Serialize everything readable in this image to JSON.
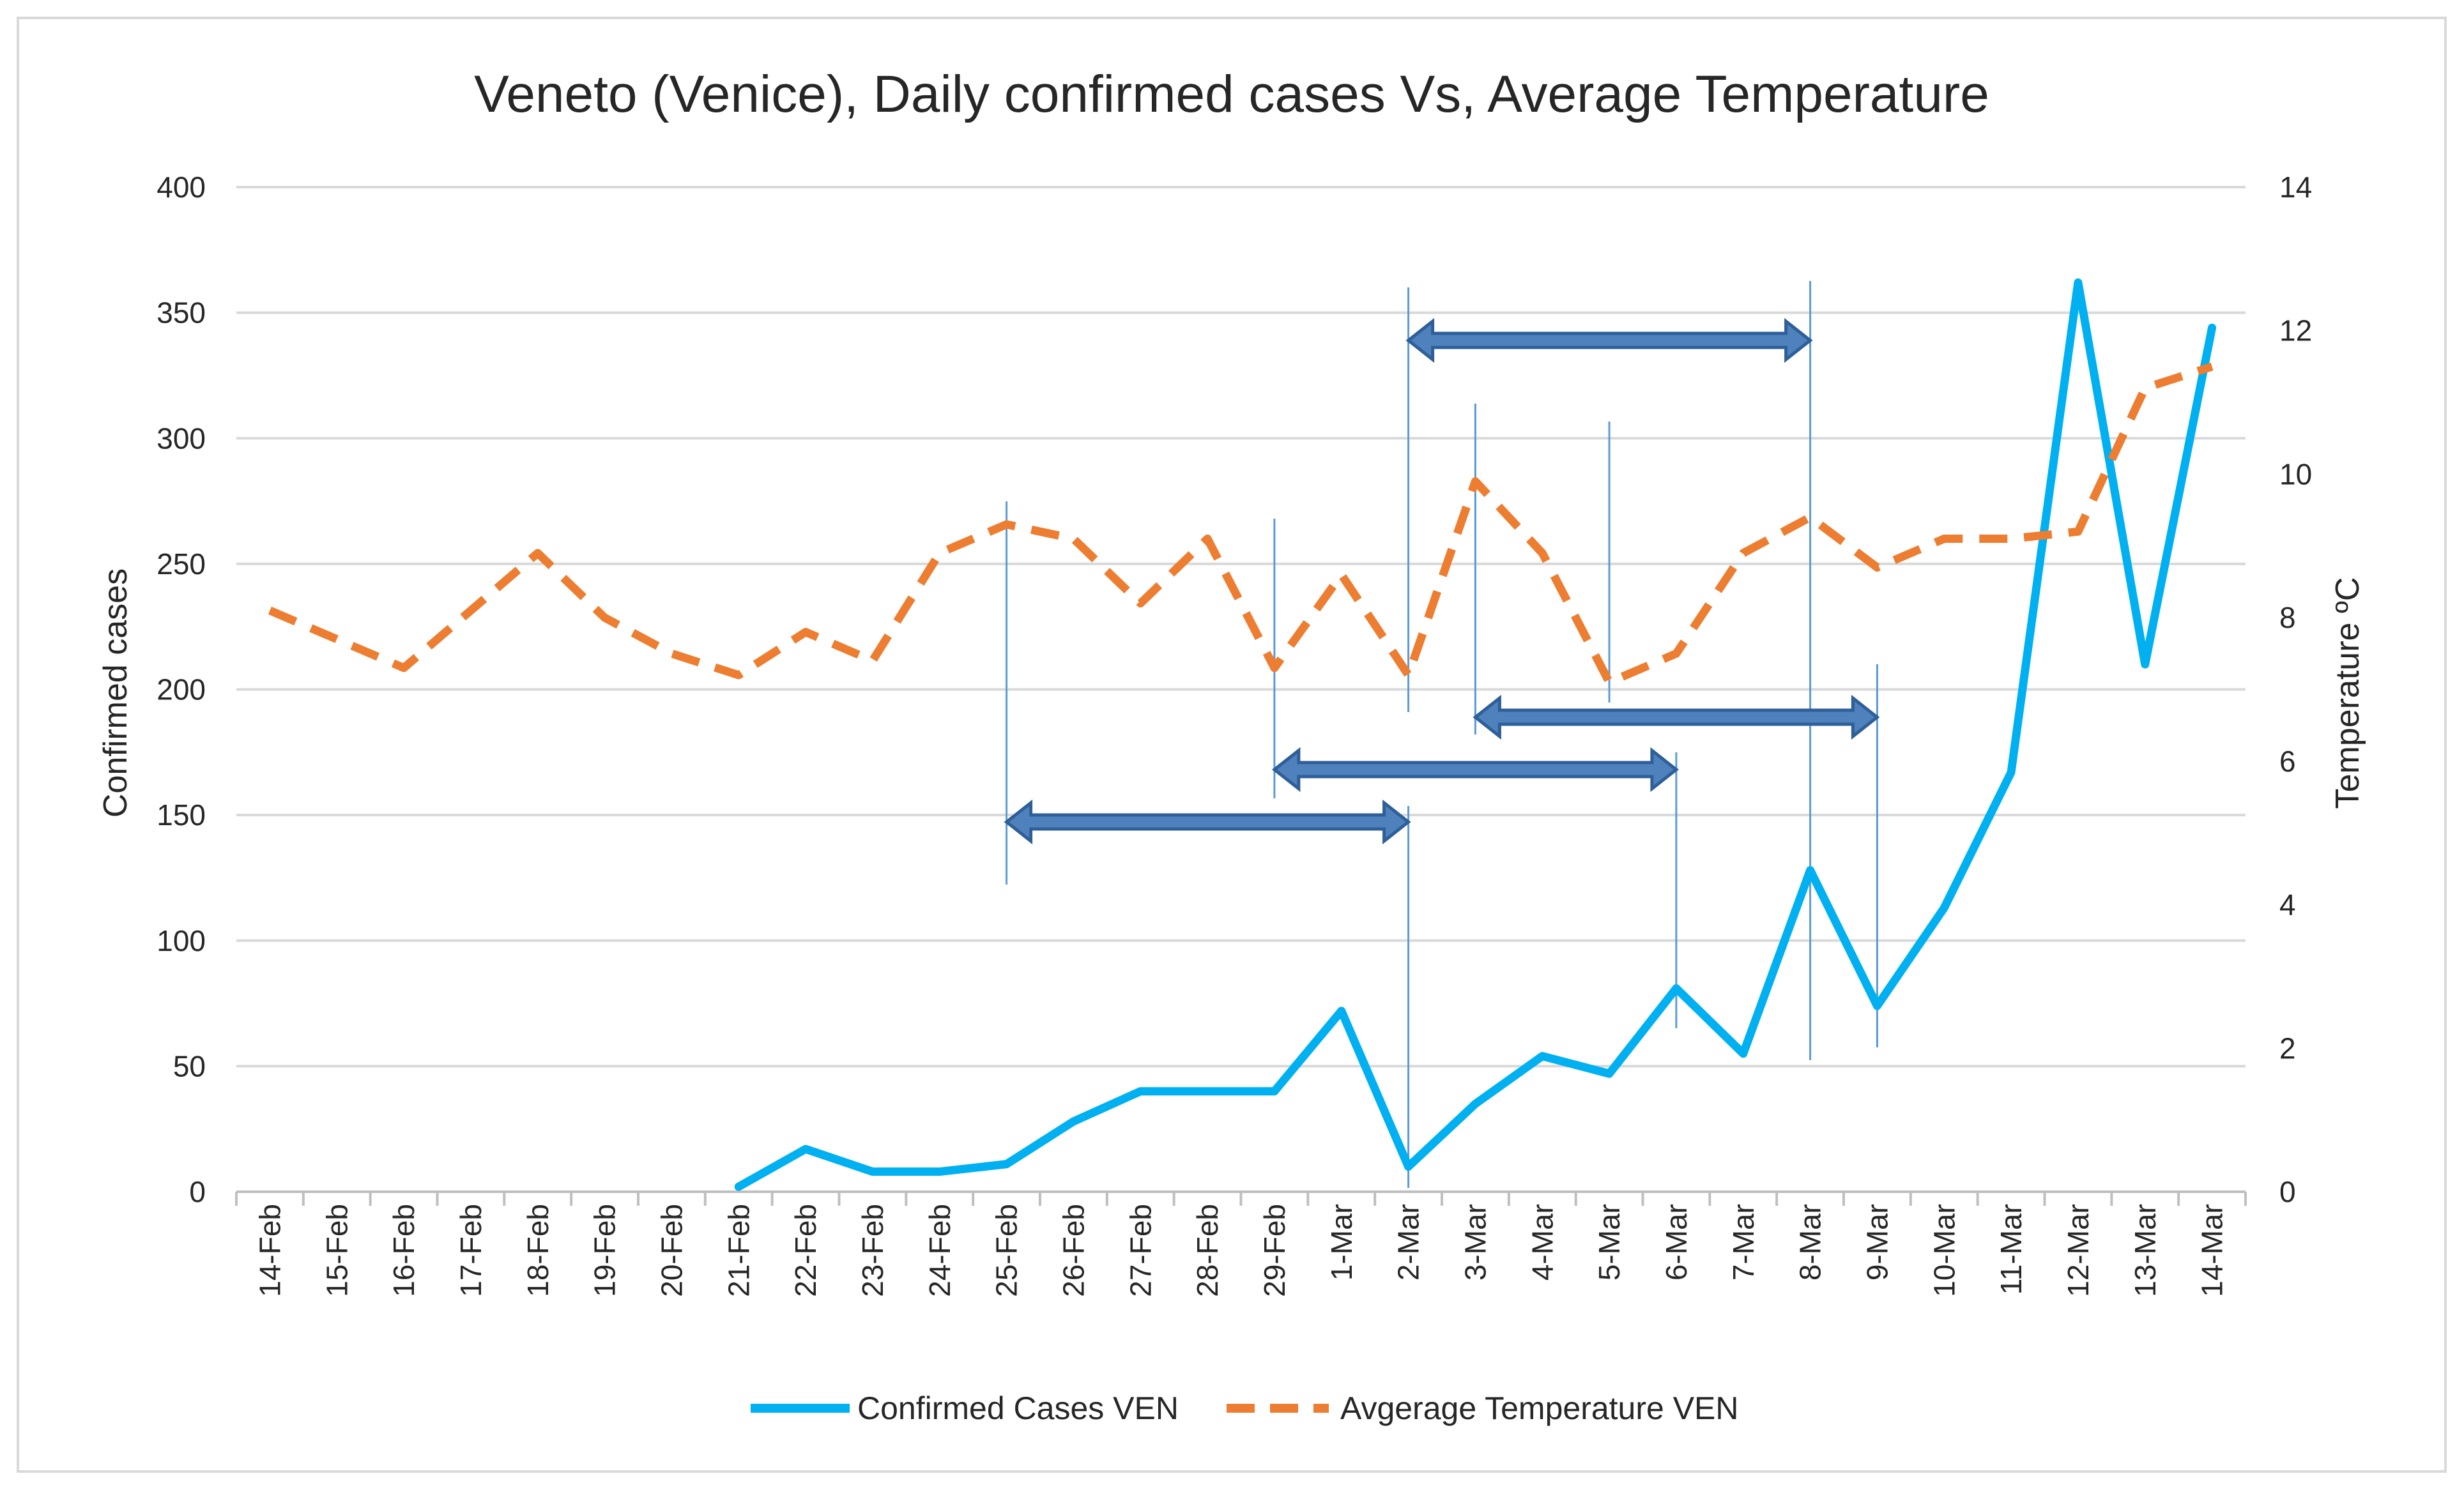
{
  "chart_data": {
    "type": "line",
    "title": "Veneto (Venice), Daily confirmed cases Vs, Average Temperature",
    "ylabel": "Confirmed cases",
    "y2label": "Temperature ºC",
    "ylim": [
      0,
      400
    ],
    "y2lim": [
      0,
      14
    ],
    "yticks": [
      "0",
      "50",
      "100",
      "150",
      "200",
      "250",
      "300",
      "350",
      "400"
    ],
    "y2ticks": [
      "0",
      "2",
      "4",
      "6",
      "8",
      "10",
      "12",
      "14"
    ],
    "categories": [
      "14-Feb",
      "15-Feb",
      "16-Feb",
      "17-Feb",
      "18-Feb",
      "19-Feb",
      "20-Feb",
      "21-Feb",
      "22-Feb",
      "23-Feb",
      "24-Feb",
      "25-Feb",
      "26-Feb",
      "27-Feb",
      "28-Feb",
      "29-Feb",
      "1-Mar",
      "2-Mar",
      "3-Mar",
      "4-Mar",
      "5-Mar",
      "6-Mar",
      "7-Mar",
      "8-Mar",
      "9-Mar",
      "10-Mar",
      "11-Mar",
      "12-Mar",
      "13-Mar",
      "14-Mar"
    ],
    "series": [
      {
        "name": "Confirmed Cases VEN",
        "axis": "left",
        "color": "#00b0f0",
        "style": "solid",
        "values": [
          null,
          null,
          null,
          null,
          null,
          null,
          null,
          2,
          17,
          8,
          8,
          11,
          28,
          40,
          40,
          40,
          72,
          10,
          35,
          54,
          47,
          81,
          55,
          128,
          74,
          113,
          167,
          362,
          210,
          344
        ]
      },
      {
        "name": "Avgerage Temperature VEN",
        "axis": "right",
        "color": "#ed7d31",
        "style": "dashed",
        "values": [
          8.1,
          7.7,
          7.3,
          8.1,
          8.9,
          8.0,
          7.5,
          7.2,
          7.8,
          7.4,
          8.9,
          9.3,
          9.1,
          8.2,
          9.1,
          7.3,
          8.6,
          7.2,
          9.9,
          8.9,
          7.1,
          7.5,
          8.9,
          9.4,
          8.7,
          9.1,
          9.1,
          9.2,
          11.2,
          11.5
        ]
      }
    ],
    "annotations": {
      "vertical_markers": [
        "25-Feb",
        "29-Feb",
        "2-Mar",
        "2-Mar",
        "3-Mar",
        "5-Mar",
        "6-Mar",
        "8-Mar",
        "9-Mar"
      ],
      "double_arrows": [
        {
          "from": "25-Feb",
          "to": "2-Mar"
        },
        {
          "from": "29-Feb",
          "to": "6-Mar"
        },
        {
          "from": "3-Mar",
          "to": "9-Mar"
        },
        {
          "from": "2-Mar",
          "to": "8-Mar"
        }
      ]
    },
    "legend_position": "bottom"
  }
}
